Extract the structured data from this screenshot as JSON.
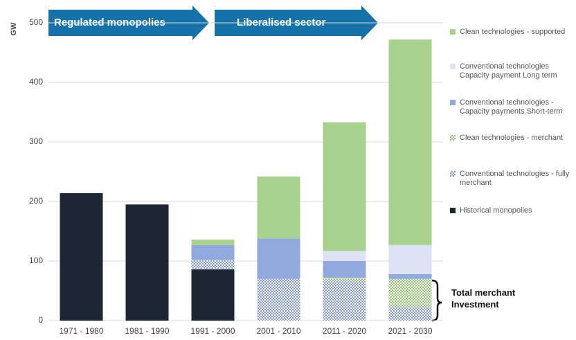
{
  "chart_data": {
    "type": "stacked_bar",
    "y_label": "GW",
    "annotations": [
      "Regulated monopolies",
      "Liberalised sector",
      "Total merchant Investment"
    ],
    "categories": [
      "1971 - 1980",
      "1981 - 1990",
      "1991 - 2000",
      "2001 - 2010",
      "2011 - 2020",
      "2021 - 2030"
    ],
    "series": [
      {
        "name": "Historical monopolies",
        "color": "#1d2633",
        "hatch": false,
        "values": [
          214,
          195,
          86,
          0,
          0,
          0
        ]
      },
      {
        "name": "Conventional technologies - fully merchant",
        "color": "#7f97d6",
        "hatch": true,
        "values": [
          0,
          0,
          16,
          70,
          67,
          23
        ]
      },
      {
        "name": "Clean technologies - merchant",
        "color": "#8fc46e",
        "hatch": true,
        "values": [
          0,
          0,
          0,
          0,
          5,
          47
        ]
      },
      {
        "name": "Conventional technologies - Capacity payments Short-term",
        "color": "#91a9dd",
        "hatch": false,
        "values": [
          0,
          0,
          25,
          68,
          28,
          8
        ]
      },
      {
        "name": "Conventional technologies Capacity payment Long term",
        "color": "#dde3f4",
        "hatch": false,
        "values": [
          0,
          0,
          0,
          0,
          17,
          49
        ]
      },
      {
        "name": "Clean technologies - supported",
        "color": "#a9d18e",
        "hatch": false,
        "values": [
          0,
          0,
          9,
          104,
          216,
          345
        ]
      }
    ],
    "ylim": [
      0,
      500
    ],
    "yticks": [
      0,
      100,
      200,
      300,
      400,
      500
    ],
    "grid": true
  }
}
